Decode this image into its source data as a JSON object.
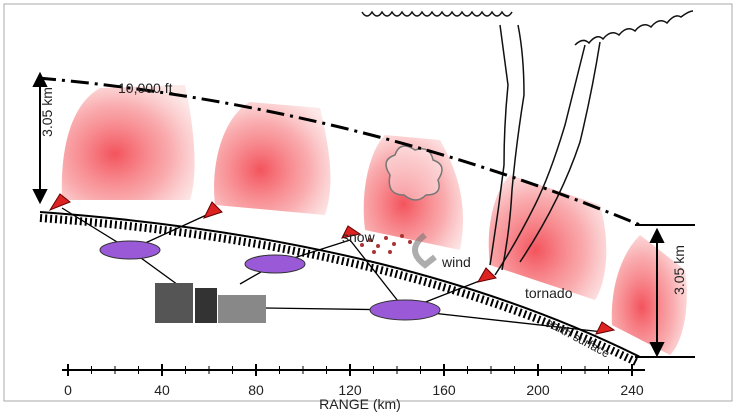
{
  "labels": {
    "left_height": "3.05 km",
    "altitude": "10,000 ft",
    "snow": "snow",
    "wind": "wind",
    "tornado": "tornado",
    "right_height": "3.05 km",
    "surface": "earth surface"
  },
  "range_axis": {
    "label": "RANGE  (km)",
    "ticks": [
      0,
      40,
      80,
      120,
      160,
      200,
      240
    ]
  }
}
